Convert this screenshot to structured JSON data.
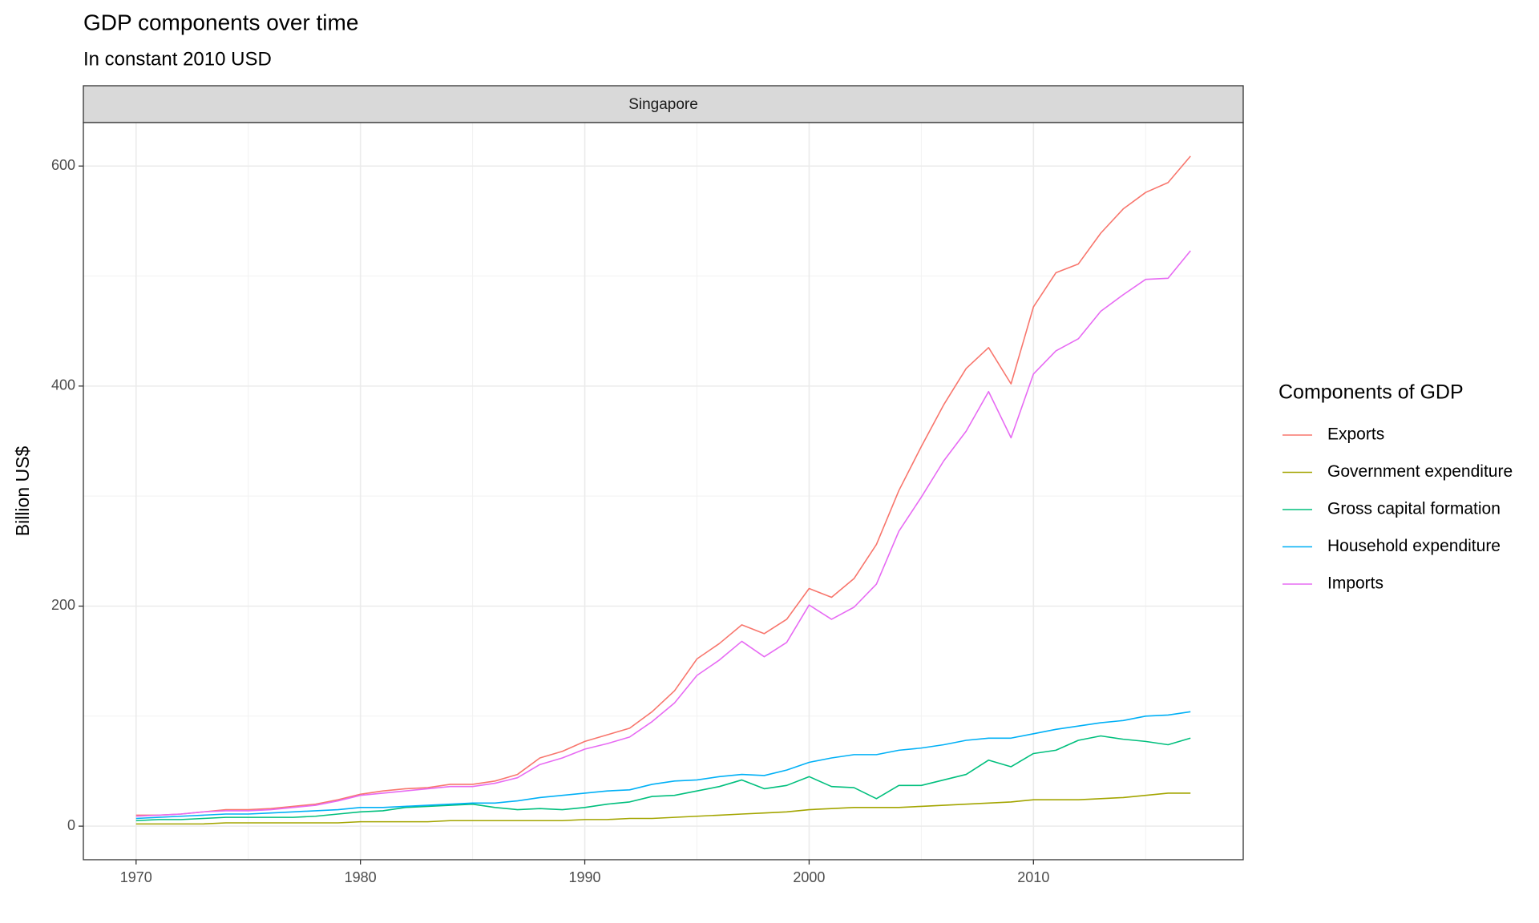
{
  "chart_data": {
    "type": "line",
    "title": "GDP components over time",
    "subtitle": "In constant 2010 USD",
    "facet": "Singapore",
    "y_label": "Billion US$",
    "legend_title": "Components of GDP",
    "legend_position": "right",
    "grid": true,
    "x": [
      1970,
      1971,
      1972,
      1973,
      1974,
      1975,
      1976,
      1977,
      1978,
      1979,
      1980,
      1981,
      1982,
      1983,
      1984,
      1985,
      1986,
      1987,
      1988,
      1989,
      1990,
      1991,
      1992,
      1993,
      1994,
      1995,
      1996,
      1997,
      1998,
      1999,
      2000,
      2001,
      2002,
      2003,
      2004,
      2005,
      2006,
      2007,
      2008,
      2009,
      2010,
      2011,
      2012,
      2013,
      2014,
      2015,
      2016,
      2017
    ],
    "xlim": [
      1967.65,
      2019.35
    ],
    "xticks": [
      1970,
      1980,
      1990,
      2000,
      2010
    ],
    "ylim": [
      -30.5,
      639.5
    ],
    "yticks": [
      0,
      200,
      400,
      600
    ],
    "series": [
      {
        "name": "Exports",
        "color": "#F8766D",
        "values": [
          10,
          10,
          11,
          13,
          15,
          15,
          16,
          18,
          20,
          24,
          29,
          32,
          34,
          35,
          38,
          38,
          41,
          47,
          62,
          68,
          77,
          83,
          89,
          104,
          123,
          152,
          166,
          183,
          175,
          188,
          216,
          208,
          225,
          256,
          305,
          345,
          383,
          416,
          435,
          402,
          472,
          503,
          511,
          539,
          561,
          576,
          585,
          609
        ]
      },
      {
        "name": "Government expenditure",
        "color": "#A3A500",
        "values": [
          2,
          2,
          2,
          2,
          3,
          3,
          3,
          3,
          3,
          3,
          4,
          4,
          4,
          4,
          5,
          5,
          5,
          5,
          5,
          5,
          6,
          6,
          7,
          7,
          8,
          9,
          10,
          11,
          12,
          13,
          15,
          16,
          17,
          17,
          17,
          18,
          19,
          20,
          21,
          22,
          24,
          24,
          24,
          25,
          26,
          28,
          30,
          30
        ]
      },
      {
        "name": "Gross capital formation",
        "color": "#00BF7D",
        "values": [
          5,
          6,
          6,
          7,
          8,
          8,
          8,
          8,
          9,
          11,
          13,
          14,
          17,
          18,
          19,
          20,
          17,
          15,
          16,
          15,
          17,
          20,
          22,
          27,
          28,
          32,
          36,
          42,
          34,
          37,
          45,
          36,
          35,
          25,
          37,
          37,
          42,
          47,
          60,
          54,
          66,
          69,
          78,
          82,
          79,
          77,
          74,
          80
        ]
      },
      {
        "name": "Household expenditure",
        "color": "#00B0F6",
        "values": [
          7,
          8,
          9,
          10,
          11,
          11,
          12,
          13,
          14,
          15,
          17,
          17,
          18,
          19,
          20,
          21,
          21,
          23,
          26,
          28,
          30,
          32,
          33,
          38,
          41,
          42,
          45,
          47,
          46,
          51,
          58,
          62,
          65,
          65,
          69,
          71,
          74,
          78,
          80,
          80,
          84,
          88,
          91,
          94,
          96,
          100,
          101,
          104
        ]
      },
      {
        "name": "Imports",
        "color": "#E76BF3",
        "values": [
          9,
          10,
          11,
          13,
          14,
          14,
          15,
          17,
          19,
          23,
          28,
          30,
          32,
          34,
          36,
          36,
          39,
          44,
          56,
          62,
          70,
          75,
          81,
          95,
          112,
          137,
          151,
          168,
          154,
          167,
          201,
          188,
          199,
          220,
          268,
          299,
          332,
          359,
          395,
          353,
          411,
          432,
          443,
          468,
          483,
          497,
          498,
          523
        ]
      }
    ]
  }
}
